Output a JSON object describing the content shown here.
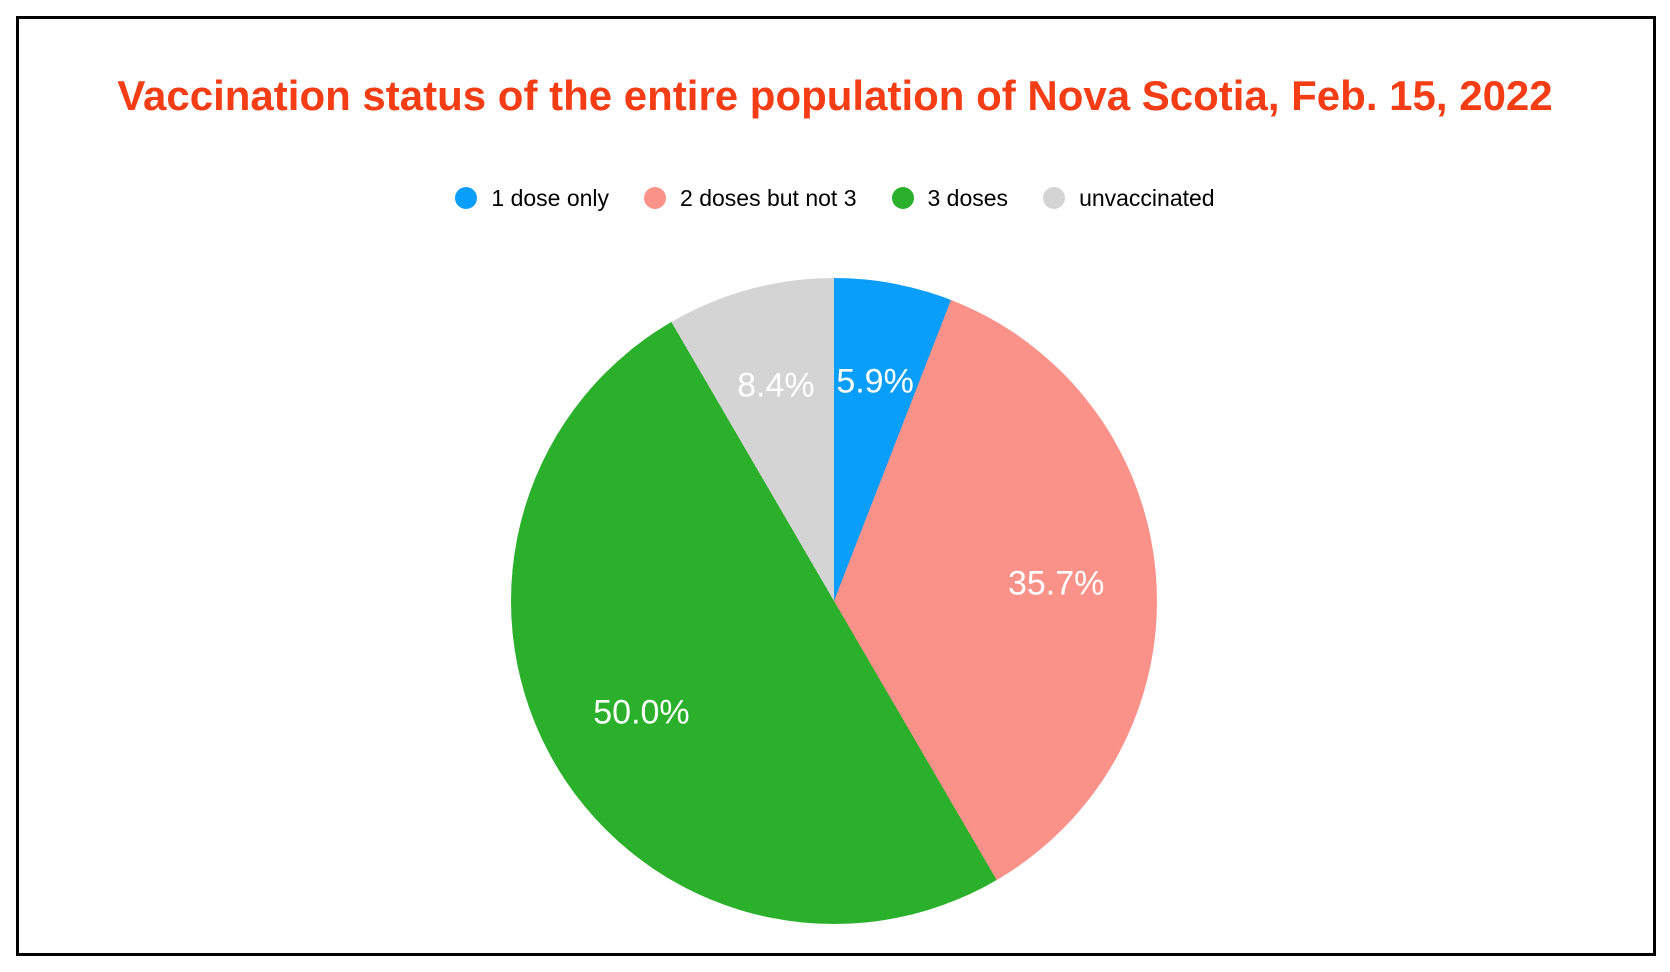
{
  "title": "Vaccination status of the entire population of Nova Scotia, Feb. 15, 2022",
  "colors": {
    "background": "#ffffff",
    "frame_border": "#000000",
    "title_text": "#f43c15",
    "legend_text": "#000000",
    "slice_label_text": "#ffffff"
  },
  "legend": {
    "position": "top-center",
    "items": [
      {
        "label": "1 dose only",
        "color": "#0a9efb",
        "swatch_icon": "circle-swatch-icon"
      },
      {
        "label": "2 doses but not 3",
        "color": "#fb9289",
        "swatch_icon": "circle-swatch-icon"
      },
      {
        "label": "3 doses",
        "color": "#2ab02b",
        "swatch_icon": "circle-swatch-icon"
      },
      {
        "label": "unvaccinated",
        "color": "#d4d4d4",
        "swatch_icon": "circle-swatch-icon"
      }
    ]
  },
  "chart_data": {
    "type": "pie",
    "title": "Vaccination status of the entire population of Nova Scotia, Feb. 15, 2022",
    "categories": [
      "1 dose only",
      "2 doses but not 3",
      "3 doses",
      "unvaccinated"
    ],
    "values": [
      5.9,
      35.7,
      50.0,
      8.4
    ],
    "slice_labels": [
      "5.9%",
      "35.7%",
      "50.0%",
      "8.4%"
    ],
    "slice_colors": [
      "#0a9efb",
      "#fb9289",
      "#2ab02b",
      "#d4d4d4"
    ],
    "start_angle_deg": 0,
    "direction": "clockwise",
    "label_radius_fraction": 0.69,
    "legend_position": "top",
    "grid": false
  }
}
